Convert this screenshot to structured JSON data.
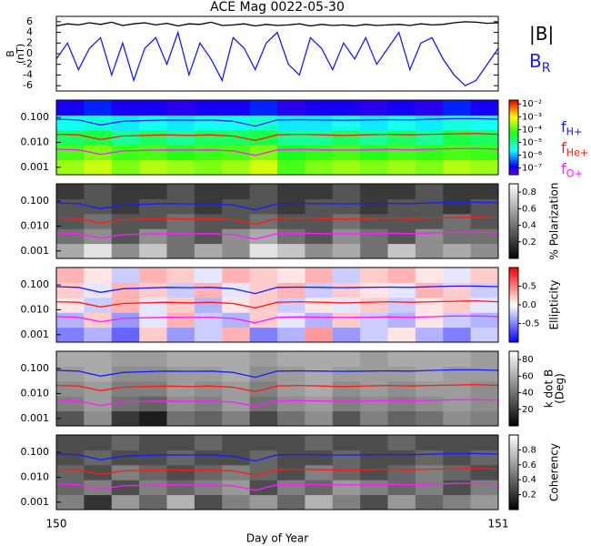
{
  "chart_data": [
    {
      "type": "line",
      "title": "ACE Mag 0022-05-30",
      "ylabel": [
        "B",
        "(nT)"
      ],
      "xlim": [
        150,
        151
      ],
      "xticks": [
        150,
        151
      ],
      "ylim": [
        -7,
        7
      ],
      "yticks": [
        -6,
        -4,
        -2,
        0,
        2,
        4,
        6
      ],
      "x": [
        150,
        150.025,
        150.05,
        150.075,
        150.1,
        150.125,
        150.15,
        150.175,
        150.2,
        150.225,
        150.25,
        150.275,
        150.3,
        150.325,
        150.35,
        150.375,
        150.4,
        150.425,
        150.45,
        150.475,
        150.5,
        150.525,
        150.55,
        150.575,
        150.6,
        150.625,
        150.65,
        150.675,
        150.7,
        150.725,
        150.75,
        150.775,
        150.8,
        150.825,
        150.85,
        150.875,
        150.9,
        150.925,
        150.95,
        150.975,
        151
      ],
      "series": [
        {
          "name": "|B|",
          "color": "#000000",
          "values": [
            5.2,
            5.6,
            5.4,
            5.8,
            5.5,
            5.9,
            5.3,
            5.6,
            5.8,
            5.4,
            5.7,
            5.2,
            5.6,
            5.5,
            5.9,
            5.3,
            5.4,
            5.6,
            5.2,
            5.5,
            5.3,
            5.4,
            5.6,
            5.2,
            5.5,
            5.3,
            5.4,
            5.2,
            5.5,
            5.3,
            5.4,
            5.5,
            5.3,
            5.6,
            5.4,
            5.5,
            5.8,
            6,
            5.9,
            5.7,
            5.8
          ]
        },
        {
          "name": "B",
          "name_sub": "R",
          "color": "#1a1aff",
          "values": [
            -1,
            2,
            -3,
            1,
            3,
            -4,
            2,
            -5,
            1,
            3,
            -2,
            4,
            -4,
            2,
            -1,
            -5,
            3,
            1,
            -3,
            2,
            4,
            -2,
            -4,
            3,
            1,
            -3,
            2,
            -1,
            3,
            -2,
            1,
            4,
            -3,
            2,
            3,
            -1,
            -4,
            -6,
            -5,
            -2,
            1
          ]
        }
      ]
    },
    {
      "type": "spectrogram",
      "ylim": [
        0.0005,
        0.5
      ],
      "ylog": true,
      "yticks": [
        {
          "value": 0.1,
          "label": "0.100"
        },
        {
          "value": 0.01,
          "label": "0.010"
        },
        0.001
      ],
      "xlim": [
        150,
        151
      ],
      "xticks": [
        150,
        151
      ],
      "colormap": "rainbow",
      "clog": true,
      "clim": [
        3e-08,
        0.02
      ],
      "cticks": [
        {
          "value": 0.01,
          "label": "10⁻²"
        },
        {
          "value": 0.001,
          "label": "10⁻³"
        },
        {
          "value": 0.0001,
          "label": "10⁻⁴"
        },
        {
          "value": 1e-05,
          "label": "10⁻⁵"
        },
        {
          "value": 1e-06,
          "label": "10⁻⁶"
        },
        {
          "value": 1e-07,
          "label": "10⁻⁷"
        }
      ],
      "z": [
        [
          0.0003,
          0.0005,
          0.0002,
          0.0004,
          0.0003,
          0.0002,
          0.0003,
          0.0006,
          0.0001,
          0.0002,
          0.0003,
          0.0002,
          0.0003,
          0.0002,
          0.0004,
          0.0003
        ],
        [
          0.0001,
          0.0002,
          8e-05,
          0.0001,
          6e-05,
          8e-05,
          0.0001,
          0.0002,
          5e-05,
          7e-05,
          0.0001,
          6e-05,
          9e-05,
          7e-05,
          0.0001,
          8e-05
        ],
        [
          2e-05,
          3e-05,
          1e-05,
          2e-05,
          1e-05,
          2e-05,
          2e-05,
          3e-05,
          1e-05,
          1e-05,
          2e-05,
          1e-05,
          2e-05,
          1e-05,
          3e-05,
          2e-05
        ],
        [
          3e-06,
          4e-06,
          2e-06,
          3e-06,
          2e-06,
          3e-06,
          3e-06,
          5e-06,
          2e-06,
          2e-06,
          3e-06,
          2e-06,
          3e-06,
          2e-06,
          4e-06,
          3e-06
        ],
        [
          1e-07,
          2e-07,
          1e-07,
          1e-07,
          8e-08,
          1e-07,
          1e-07,
          2e-07,
          8e-08,
          1e-07,
          1e-07,
          8e-08,
          1e-07,
          8e-08,
          2e-07,
          1e-07
        ]
      ],
      "x": [
        150,
        150.05,
        150.1,
        150.15,
        150.2,
        150.25,
        150.3,
        150.35,
        150.4,
        150.45,
        150.5,
        150.55,
        150.6,
        150.65,
        150.7,
        150.75,
        150.8,
        150.85,
        150.9,
        150.95,
        151
      ],
      "series": [
        {
          "name": "f",
          "name_sub": "H+",
          "color": "#1a1aff",
          "values": [
            0.085,
            0.08,
            0.05,
            0.07,
            0.075,
            0.08,
            0.078,
            0.08,
            0.07,
            0.045,
            0.08,
            0.082,
            0.08,
            0.078,
            0.08,
            0.082,
            0.08,
            0.085,
            0.09,
            0.09,
            0.085
          ]
        },
        {
          "name": "f",
          "name_sub": "He+",
          "color": "#ff1a1a",
          "values": [
            0.021,
            0.02,
            0.013,
            0.018,
            0.019,
            0.02,
            0.019,
            0.02,
            0.018,
            0.012,
            0.02,
            0.021,
            0.02,
            0.019,
            0.02,
            0.021,
            0.02,
            0.021,
            0.022,
            0.023,
            0.021
          ]
        },
        {
          "name": "f",
          "name_sub": "O+",
          "color": "#ff1aff",
          "values": [
            0.0053,
            0.005,
            0.0033,
            0.0045,
            0.0048,
            0.005,
            0.0049,
            0.005,
            0.0045,
            0.003,
            0.005,
            0.0052,
            0.005,
            0.0049,
            0.005,
            0.0052,
            0.005,
            0.0053,
            0.0056,
            0.0057,
            0.0053
          ]
        }
      ]
    },
    {
      "type": "spectrogram",
      "ylim": [
        0.0005,
        0.5
      ],
      "ylog": true,
      "yticks": [
        {
          "value": 0.1,
          "label": "0.100"
        },
        {
          "value": 0.01,
          "label": "0.010"
        },
        0.001
      ],
      "xlim": [
        150,
        151
      ],
      "xticks": [
        150,
        151
      ],
      "colormap": "gray",
      "clim": [
        0,
        0.9
      ],
      "cticks": [
        0.2,
        0.4,
        0.6,
        0.8
      ],
      "colorbar_label": [
        "% Polarization"
      ],
      "z": [
        [
          0.6,
          0.8,
          0.5,
          0.7,
          0.4,
          0.6,
          0.5,
          0.8,
          0.7,
          0.5,
          0.6,
          0.4,
          0.7,
          0.5,
          0.6,
          0.5
        ],
        [
          0.4,
          0.5,
          0.3,
          0.5,
          0.4,
          0.3,
          0.5,
          0.6,
          0.4,
          0.3,
          0.5,
          0.4,
          0.3,
          0.5,
          0.4,
          0.4
        ],
        [
          0.3,
          0.4,
          0.3,
          0.3,
          0.4,
          0.3,
          0.3,
          0.4,
          0.3,
          0.3,
          0.4,
          0.3,
          0.3,
          0.3,
          0.4,
          0.3
        ],
        [
          0.3,
          0.3,
          0.2,
          0.3,
          0.3,
          0.2,
          0.3,
          0.3,
          0.2,
          0.3,
          0.3,
          0.2,
          0.3,
          0.3,
          0.2,
          0.3
        ],
        [
          0.2,
          0.3,
          0.2,
          0.2,
          0.3,
          0.2,
          0.2,
          0.3,
          0.2,
          0.2,
          0.3,
          0.2,
          0.2,
          0.3,
          0.2,
          0.2
        ]
      ]
    },
    {
      "type": "spectrogram",
      "ylim": [
        0.0005,
        0.5
      ],
      "ylog": true,
      "yticks": [
        {
          "value": 0.1,
          "label": "0.100"
        },
        {
          "value": 0.01,
          "label": "0.010"
        },
        0.001
      ],
      "xlim": [
        150,
        151
      ],
      "xticks": [
        150,
        151
      ],
      "colormap": "bwr",
      "clim": [
        -1,
        1
      ],
      "cticks": [
        -0.5,
        {
          "value": 0,
          "label": "0.0"
        },
        0.5
      ],
      "colorbar_label": [
        "Ellipticity"
      ],
      "z": [
        [
          -0.5,
          -0.3,
          -0.6,
          0.2,
          -0.4,
          -0.2,
          0.3,
          -0.5,
          -0.3,
          0.4,
          -0.4,
          -0.2,
          0.1,
          -0.3,
          -0.5,
          -0.2
        ],
        [
          -0.3,
          0.2,
          -0.4,
          -0.1,
          0.3,
          -0.2,
          -0.3,
          0.2,
          -0.1,
          -0.3,
          0.2,
          -0.2,
          -0.3,
          0.1,
          -0.2,
          -0.3
        ],
        [
          0.1,
          -0.2,
          0.3,
          -0.1,
          0.2,
          -0.3,
          0.1,
          0.2,
          -0.2,
          0.1,
          -0.1,
          0.2,
          -0.2,
          0.1,
          0.2,
          -0.1
        ],
        [
          0.2,
          -0.1,
          0.3,
          0.2,
          -0.2,
          0.3,
          -0.1,
          0.2,
          0.3,
          -0.2,
          0.2,
          0.1,
          -0.1,
          0.3,
          0.2,
          -0.2
        ],
        [
          0.3,
          0.1,
          -0.2,
          0.3,
          0.2,
          -0.1,
          0.3,
          0.2,
          0.1,
          0.3,
          -0.2,
          0.2,
          0.3,
          0.1,
          -0.1,
          0.2
        ]
      ]
    },
    {
      "type": "spectrogram",
      "ylim": [
        0.0005,
        0.5
      ],
      "ylog": true,
      "yticks": [
        {
          "value": 0.1,
          "label": "0.100"
        },
        {
          "value": 0.01,
          "label": "0.010"
        },
        0.001
      ],
      "xlim": [
        150,
        151
      ],
      "xticks": [
        150,
        151
      ],
      "colormap": "gray",
      "clim": [
        0,
        90
      ],
      "cticks": [
        20,
        40,
        60,
        80
      ],
      "colorbar_label": [
        "k dot B",
        "(Deg)"
      ],
      "z": [
        [
          30,
          50,
          20,
          10,
          40,
          35,
          45,
          25,
          40,
          50,
          30,
          45,
          35,
          40,
          50,
          45
        ],
        [
          45,
          55,
          40,
          35,
          50,
          45,
          55,
          40,
          50,
          55,
          45,
          50,
          45,
          50,
          55,
          50
        ],
        [
          50,
          55,
          45,
          45,
          55,
          50,
          55,
          45,
          55,
          60,
          50,
          55,
          50,
          55,
          55,
          50
        ],
        [
          55,
          60,
          50,
          50,
          55,
          55,
          60,
          50,
          55,
          60,
          55,
          55,
          55,
          60,
          55,
          55
        ],
        [
          60,
          60,
          55,
          55,
          60,
          60,
          60,
          55,
          60,
          60,
          60,
          55,
          60,
          60,
          60,
          55
        ]
      ]
    },
    {
      "type": "spectrogram",
      "ylim": [
        0.0005,
        0.5
      ],
      "ylog": true,
      "yticks": [
        {
          "value": 0.1,
          "label": "0.100"
        },
        {
          "value": 0.01,
          "label": "0.010"
        },
        0.001
      ],
      "xlim": [
        150,
        151
      ],
      "xticks": [
        150,
        151
      ],
      "xlabel": "Day of Year",
      "colormap": "gray",
      "clim": [
        0,
        1
      ],
      "cticks": [
        0.2,
        0.4,
        0.6,
        0.8
      ],
      "colorbar_label": [
        "Coherency"
      ],
      "z": [
        [
          0.5,
          0.2,
          0.6,
          0.4,
          0.7,
          0.3,
          0.5,
          0.6,
          0.4,
          0.7,
          0.5,
          0.3,
          0.6,
          0.4,
          0.5,
          0.6
        ],
        [
          0.4,
          0.5,
          0.3,
          0.5,
          0.4,
          0.5,
          0.6,
          0.3,
          0.5,
          0.4,
          0.6,
          0.5,
          0.4,
          0.5,
          0.3,
          0.5
        ],
        [
          0.4,
          0.3,
          0.5,
          0.4,
          0.3,
          0.4,
          0.5,
          0.4,
          0.3,
          0.5,
          0.4,
          0.3,
          0.4,
          0.5,
          0.4,
          0.3
        ],
        [
          0.3,
          0.4,
          0.3,
          0.3,
          0.4,
          0.3,
          0.3,
          0.4,
          0.3,
          0.3,
          0.4,
          0.3,
          0.3,
          0.4,
          0.3,
          0.4
        ],
        [
          0.3,
          0.3,
          0.4,
          0.3,
          0.3,
          0.4,
          0.3,
          0.3,
          0.3,
          0.4,
          0.3,
          0.3,
          0.4,
          0.3,
          0.3,
          0.3
        ]
      ]
    }
  ]
}
